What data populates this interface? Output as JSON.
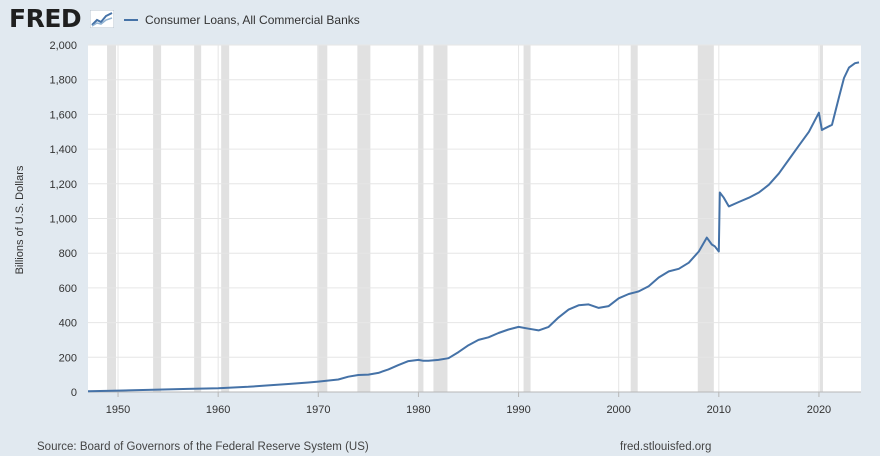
{
  "header": {
    "logo_text": "FRED",
    "legend_label": "Consumer Loans, All Commercial Banks",
    "series_color": "#4572a7"
  },
  "footer": {
    "source": "Source: Board of Governors of the Federal Reserve System (US)",
    "url": "fred.stlouisfed.org"
  },
  "chart_data": {
    "type": "line",
    "ylabel": "Billions of U.S. Dollars",
    "xlim": [
      1947,
      2024.2
    ],
    "ylim": [
      0,
      2000
    ],
    "y_ticks": [
      0,
      200,
      400,
      600,
      800,
      1000,
      1200,
      1400,
      1600,
      1800,
      2000
    ],
    "y_tick_labels": [
      "0",
      "200",
      "400",
      "600",
      "800",
      "1,000",
      "1,200",
      "1,400",
      "1,600",
      "1,800",
      "2,000"
    ],
    "x_ticks": [
      1950,
      1960,
      1970,
      1980,
      1990,
      2000,
      2010,
      2020
    ],
    "x_tick_labels": [
      "1950",
      "1960",
      "1970",
      "1980",
      "1990",
      "2000",
      "2010",
      "2020"
    ],
    "grid": true,
    "recessions": [
      [
        1948.9,
        1949.8
      ],
      [
        1953.5,
        1954.3
      ],
      [
        1957.6,
        1958.3
      ],
      [
        1960.3,
        1961.1
      ],
      [
        1969.9,
        1970.9
      ],
      [
        1973.9,
        1975.2
      ],
      [
        1980.0,
        1980.5
      ],
      [
        1981.5,
        1982.9
      ],
      [
        1990.5,
        1991.2
      ],
      [
        2001.2,
        2001.9
      ],
      [
        2007.9,
        2009.5
      ],
      [
        2020.1,
        2020.4
      ]
    ],
    "series": [
      {
        "name": "Consumer Loans, All Commercial Banks",
        "x": [
          1947,
          1950,
          1953,
          1955,
          1957,
          1960,
          1963,
          1965,
          1967,
          1969,
          1970,
          1972,
          1973,
          1974,
          1975,
          1976,
          1977,
          1978,
          1979,
          1980,
          1980.5,
          1981,
          1982,
          1983,
          1984,
          1985,
          1986,
          1987,
          1988,
          1989,
          1990,
          1991,
          1992,
          1993,
          1994,
          1995,
          1996,
          1997,
          1998,
          1999,
          2000,
          2001,
          2002,
          2003,
          2004,
          2005,
          2006,
          2007,
          2008,
          2008.8,
          2009.3,
          2009.6,
          2010.0,
          2010.1,
          2010.5,
          2011,
          2012,
          2013,
          2014,
          2015,
          2016,
          2017,
          2018,
          2019,
          2020.0,
          2020.3,
          2020.6,
          2021.3,
          2022,
          2022.5,
          2023,
          2023.6,
          2024
        ],
        "values": [
          4,
          8,
          12,
          15,
          18,
          22,
          30,
          38,
          46,
          55,
          60,
          72,
          88,
          98,
          100,
          110,
          130,
          155,
          178,
          185,
          180,
          180,
          185,
          195,
          230,
          270,
          300,
          315,
          340,
          360,
          375,
          365,
          355,
          375,
          430,
          475,
          500,
          505,
          485,
          495,
          540,
          565,
          580,
          610,
          660,
          695,
          710,
          745,
          810,
          890,
          850,
          840,
          810,
          1150,
          1120,
          1070,
          1095,
          1120,
          1150,
          1195,
          1260,
          1340,
          1420,
          1500,
          1610,
          1510,
          1520,
          1540,
          1700,
          1810,
          1870,
          1895,
          1900
        ]
      }
    ]
  }
}
